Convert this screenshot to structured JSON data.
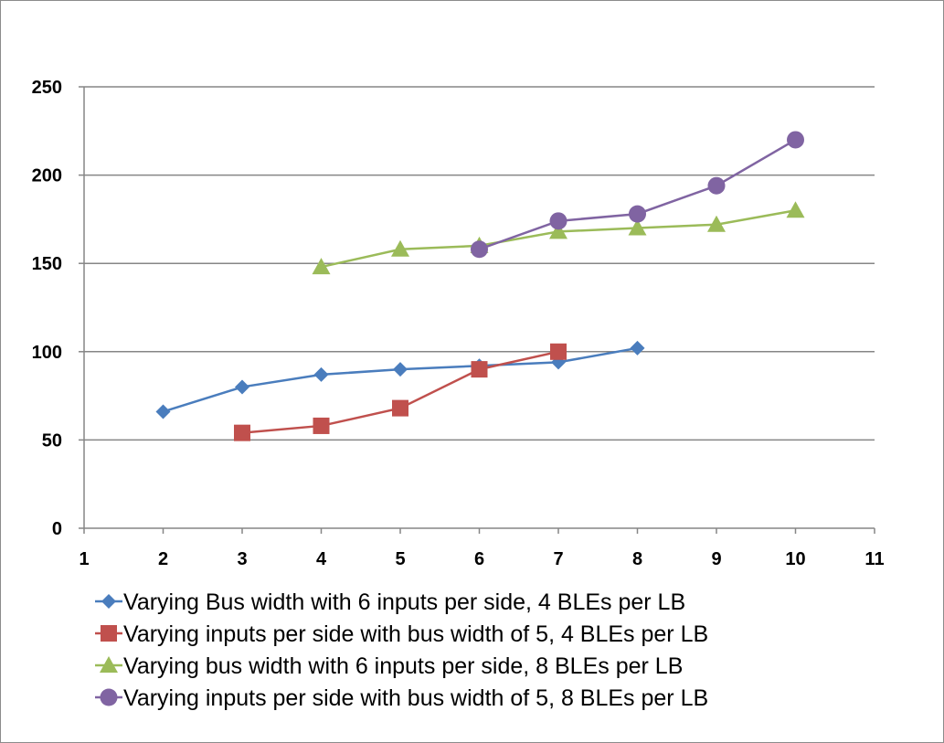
{
  "chart_data": {
    "type": "line",
    "title": "",
    "xlabel": "",
    "ylabel": "",
    "xlim": [
      1,
      11
    ],
    "ylim": [
      0,
      250
    ],
    "x_ticks": [
      "1",
      "2",
      "3",
      "4",
      "5",
      "6",
      "7",
      "8",
      "9",
      "10",
      "11"
    ],
    "y_ticks": [
      "0",
      "50",
      "100",
      "150",
      "200",
      "250"
    ],
    "grid": "horizontal",
    "legend_position": "bottom",
    "series": [
      {
        "name": "Varying Bus width with 6 inputs per side, 4 BLEs per LB",
        "color": "#4a7dbd",
        "marker": "diamond",
        "x": [
          2,
          3,
          4,
          5,
          6,
          7,
          8
        ],
        "values": [
          66,
          80,
          87,
          90,
          92,
          94,
          102
        ]
      },
      {
        "name": "Varying inputs per side with bus width of 5, 4 BLEs per LB",
        "color": "#c0504d",
        "marker": "square",
        "x": [
          3,
          4,
          5,
          6,
          7
        ],
        "values": [
          54,
          58,
          68,
          90,
          100
        ]
      },
      {
        "name": "Varying bus width with 6 inputs per side, 8 BLEs per LB",
        "color": "#9bbb59",
        "marker": "triangle",
        "x": [
          4,
          5,
          6,
          7,
          8,
          9,
          10
        ],
        "values": [
          148,
          158,
          160,
          168,
          170,
          172,
          180
        ]
      },
      {
        "name": "Varying inputs per side with bus width of 5, 8 BLEs per LB",
        "color": "#8064a2",
        "marker": "circle",
        "x": [
          6,
          7,
          8,
          9,
          10
        ],
        "values": [
          158,
          174,
          178,
          194,
          220
        ]
      }
    ]
  }
}
